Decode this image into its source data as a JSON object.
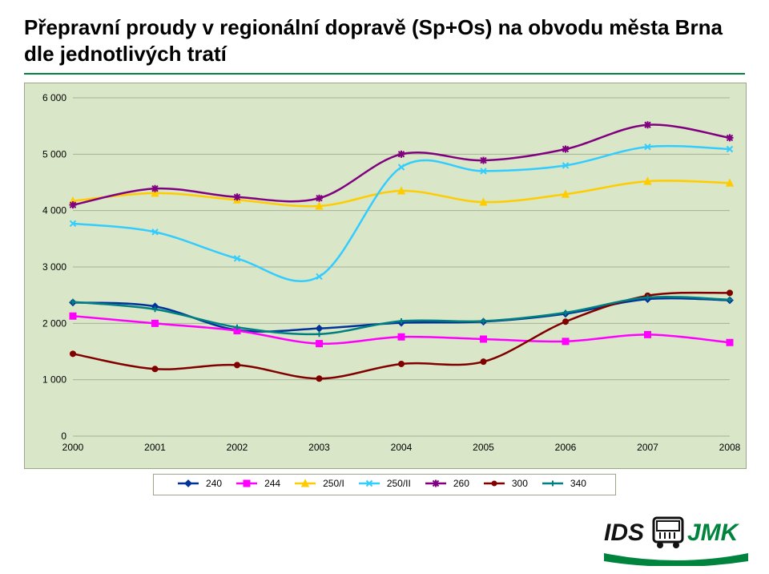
{
  "title": "Přepravní proudy v regionální dopravě (Sp+Os) na obvodu města Brna dle jednotlivých tratí",
  "chart": {
    "type": "line",
    "background_color": "#d9e6c8",
    "grid_color": "#a7b197",
    "xlim": [
      2000,
      2008
    ],
    "ylim": [
      0,
      6000
    ],
    "xtick_step": 1,
    "ytick_step": 1000,
    "x_categories": [
      "2000",
      "2001",
      "2002",
      "2003",
      "2004",
      "2005",
      "2006",
      "2007",
      "2008"
    ],
    "y_ticks": [
      "0",
      "1 000",
      "2 000",
      "3 000",
      "4 000",
      "5 000",
      "6 000"
    ],
    "title_fontsize": 26,
    "axis_fontsize": 12,
    "line_width": 2.5,
    "marker_size": 7,
    "series": [
      {
        "name": "240",
        "color": "#003399",
        "marker": "diamond",
        "values": [
          2370,
          2300,
          1880,
          1910,
          2010,
          2030,
          2170,
          2430,
          2410
        ]
      },
      {
        "name": "244",
        "color": "#ff00ff",
        "marker": "square",
        "values": [
          2130,
          2000,
          1870,
          1640,
          1760,
          1720,
          1680,
          1800,
          1660
        ]
      },
      {
        "name": "250/I",
        "color": "#ffcc00",
        "marker": "triangle",
        "values": [
          4170,
          4310,
          4190,
          4080,
          4350,
          4150,
          4290,
          4520,
          4490
        ]
      },
      {
        "name": "250/II",
        "color": "#33ccff",
        "marker": "x",
        "values": [
          3770,
          3620,
          3150,
          2830,
          4770,
          4700,
          4800,
          5130,
          5090
        ]
      },
      {
        "name": "260",
        "color": "#800080",
        "marker": "star",
        "values": [
          4100,
          4390,
          4240,
          4220,
          5000,
          4890,
          5090,
          5520,
          5290
        ]
      },
      {
        "name": "300",
        "color": "#800000",
        "marker": "circle",
        "values": [
          1460,
          1190,
          1260,
          1020,
          1280,
          1320,
          2030,
          2490,
          2540
        ]
      },
      {
        "name": "340",
        "color": "#008080",
        "marker": "plus",
        "values": [
          2380,
          2250,
          1930,
          1810,
          2040,
          2040,
          2190,
          2460,
          2420
        ]
      }
    ]
  },
  "logo": {
    "text1": "IDS",
    "text2": "JMK",
    "accent": "#00843d",
    "dark": "#111"
  }
}
